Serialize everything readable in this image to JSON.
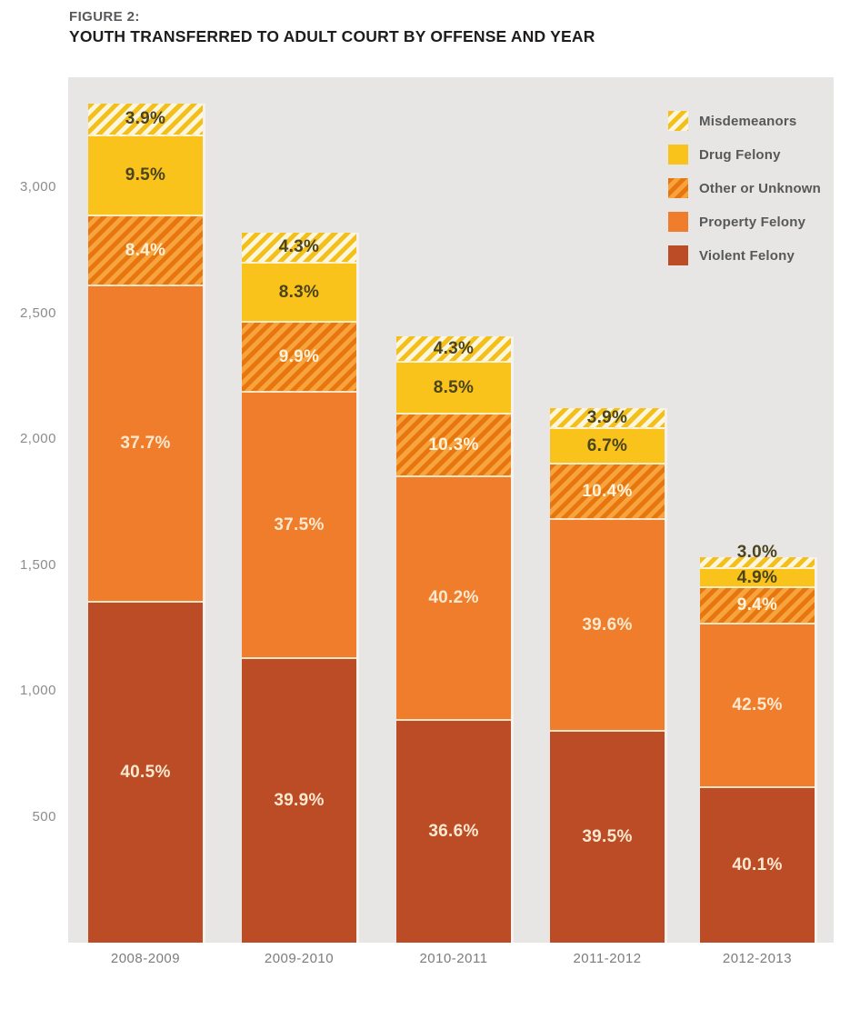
{
  "page": {
    "figure_label": "FIGURE 2:",
    "title": "YOUTH TRANSFERRED TO ADULT COURT BY OFFENSE AND YEAR"
  },
  "chart_data": {
    "type": "bar",
    "stacked": true,
    "title": "YOUTH TRANSFERRED TO ADULT COURT BY OFFENSE AND YEAR",
    "categories": [
      "2008-2009",
      "2009-2010",
      "2010-2011",
      "2011-2012",
      "2012-2013"
    ],
    "series_bottom_to_top": [
      {
        "name": "Violent Felony",
        "pattern": "solid",
        "color": "#bc4c26",
        "label_color": "#fbe9cf",
        "values_pct": [
          40.5,
          39.9,
          36.6,
          39.5,
          40.1
        ]
      },
      {
        "name": "Property Felony",
        "pattern": "solid",
        "color": "#ef7d2b",
        "label_color": "#fbe9cf",
        "values_pct": [
          37.7,
          37.5,
          40.2,
          39.6,
          42.5
        ]
      },
      {
        "name": "Other or Unknown",
        "pattern": "hatch",
        "color": "#f7a33e",
        "stripe_color": "#e8760e",
        "label_color": "#fdf2da",
        "values_pct": [
          8.4,
          9.9,
          10.3,
          10.4,
          9.4
        ]
      },
      {
        "name": "Drug Felony",
        "pattern": "solid",
        "color": "#f9c31b",
        "label_color": "#4c441f",
        "values_pct": [
          9.5,
          8.3,
          8.5,
          6.7,
          4.9
        ]
      },
      {
        "name": "Misdemeanors",
        "pattern": "hatch",
        "color": "#fcf6df",
        "stripe_color": "#f3c01b",
        "label_color": "#4c441f",
        "values_pct": [
          3.9,
          4.3,
          4.3,
          3.9,
          3.0
        ]
      }
    ],
    "estimated_totals_from_axis": [
      3330,
      2820,
      2410,
      2120,
      1530
    ],
    "y_axis": {
      "range": [
        0,
        3400
      ],
      "gridlines": false,
      "ticks": [
        {
          "value": 500,
          "label": "500"
        },
        {
          "value": 1000,
          "label": "1,000"
        },
        {
          "value": 1500,
          "label": "1,500"
        },
        {
          "value": 2000,
          "label": "2,000"
        },
        {
          "value": 2500,
          "label": "2,500"
        },
        {
          "value": 3000,
          "label": "3,000"
        }
      ]
    },
    "legend": {
      "position": "top-right",
      "items_top_to_bottom": [
        "Misdemeanors",
        "Drug Felony",
        "Other or Unknown",
        "Property Felony",
        "Violent Felony"
      ]
    }
  }
}
